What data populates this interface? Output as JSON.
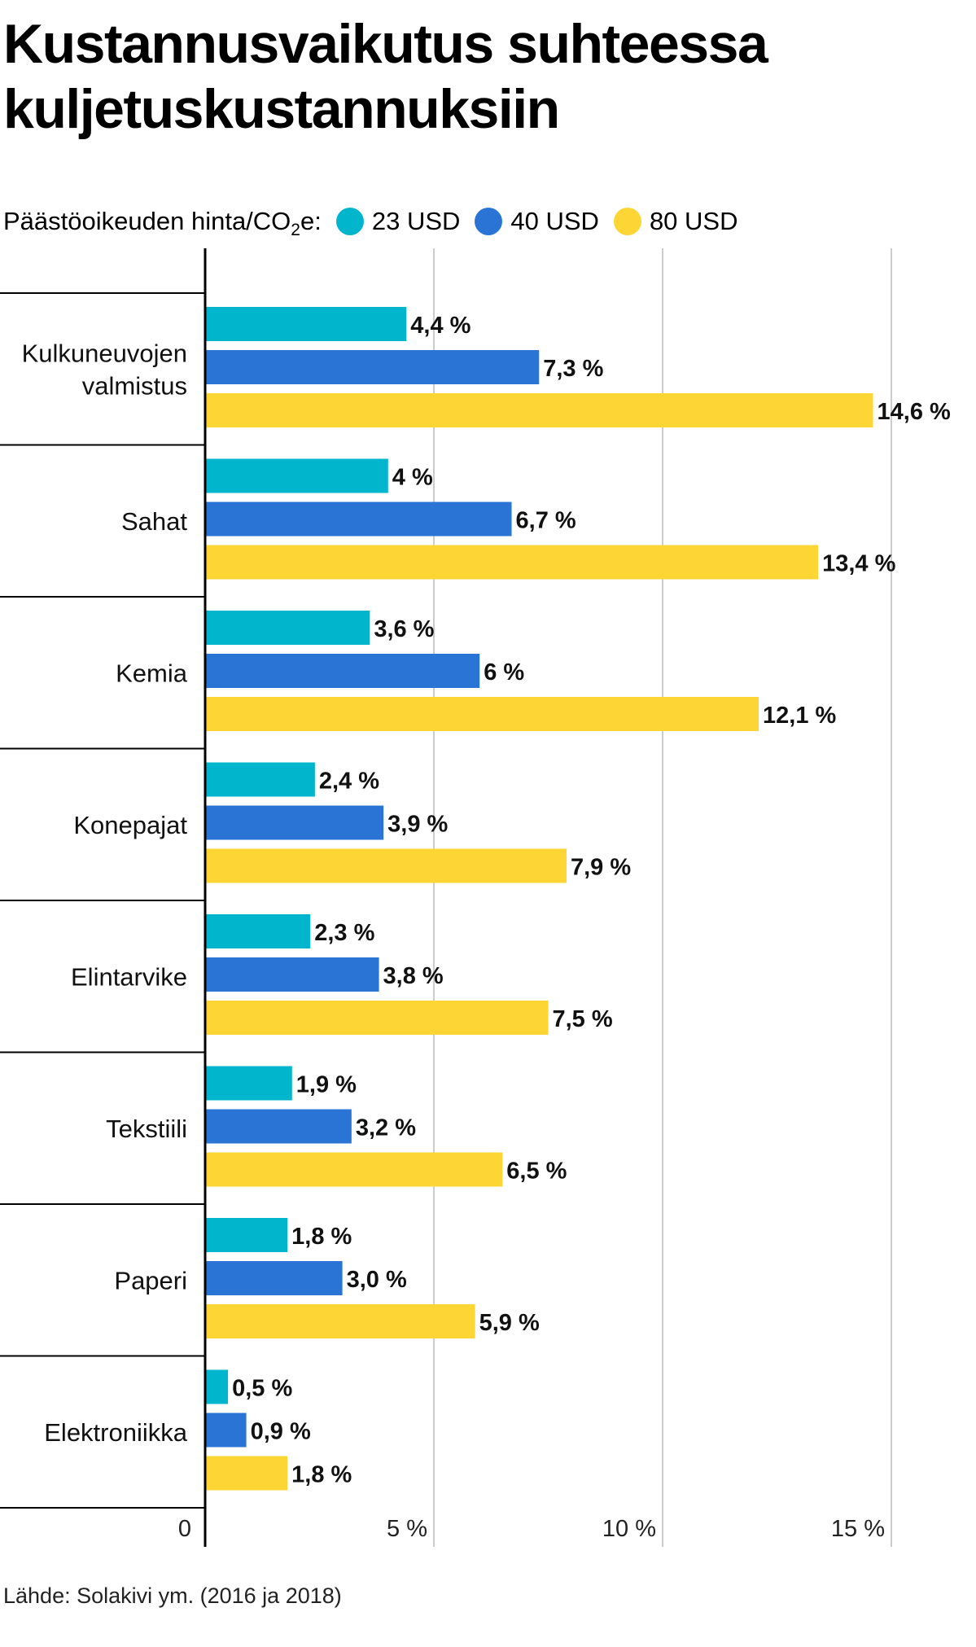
{
  "title": "Kustannusvaikutus suhteessa\nkuljetuskustannuksiin",
  "legend": {
    "label_prefix": "Päästöoikeuden hinta/CO",
    "label_sub": "2",
    "label_suffix": "e:"
  },
  "source": "Lähde: Solakivi ym. (2016 ja 2018)",
  "colors": {
    "series_23": "#00b5cc",
    "series_40": "#2a74d6",
    "series_80": "#fdd535",
    "gridline": "#cccccc",
    "axis": "#000000",
    "separator": "#000000"
  },
  "chart_data": {
    "type": "bar",
    "orientation": "horizontal",
    "title": "Kustannusvaikutus suhteessa kuljetuskustannuksiin",
    "legend_title": "Päästöoikeuden hinta/CO2e:",
    "legend_position": "top-left",
    "grid": true,
    "xlim": [
      0,
      15
    ],
    "x_ticks": [
      0,
      5,
      10,
      15
    ],
    "x_tick_labels": [
      "0",
      "5 %",
      "10 %",
      "15 %"
    ],
    "categories": [
      "Kulkuneuvojen\nvalmistus",
      "Sahat",
      "Kemia",
      "Konepajat",
      "Elintarvike",
      "Tekstiili",
      "Paperi",
      "Elektroniikka"
    ],
    "series": [
      {
        "name": "23 USD",
        "color": "#00b5cc",
        "values": [
          4.4,
          4.0,
          3.6,
          2.4,
          2.3,
          1.9,
          1.8,
          0.5
        ],
        "labels": [
          "4,4 %",
          "4 %",
          "3,6 %",
          "2,4 %",
          "2,3 %",
          "1,9 %",
          "1,8 %",
          "0,5 %"
        ]
      },
      {
        "name": "40 USD",
        "color": "#2a74d6",
        "values": [
          7.3,
          6.7,
          6.0,
          3.9,
          3.8,
          3.2,
          3.0,
          0.9
        ],
        "labels": [
          "7,3 %",
          "6,7 %",
          "6 %",
          "3,9 %",
          "3,8 %",
          "3,2 %",
          "3,0 %",
          "0,9 %"
        ]
      },
      {
        "name": "80 USD",
        "color": "#fdd535",
        "values": [
          14.6,
          13.4,
          12.1,
          7.9,
          7.5,
          6.5,
          5.9,
          1.8
        ],
        "labels": [
          "14,6 %",
          "13,4 %",
          "12,1 %",
          "7,9 %",
          "7,5 %",
          "6,5 %",
          "5,9 %",
          "1,8 %"
        ]
      }
    ]
  }
}
